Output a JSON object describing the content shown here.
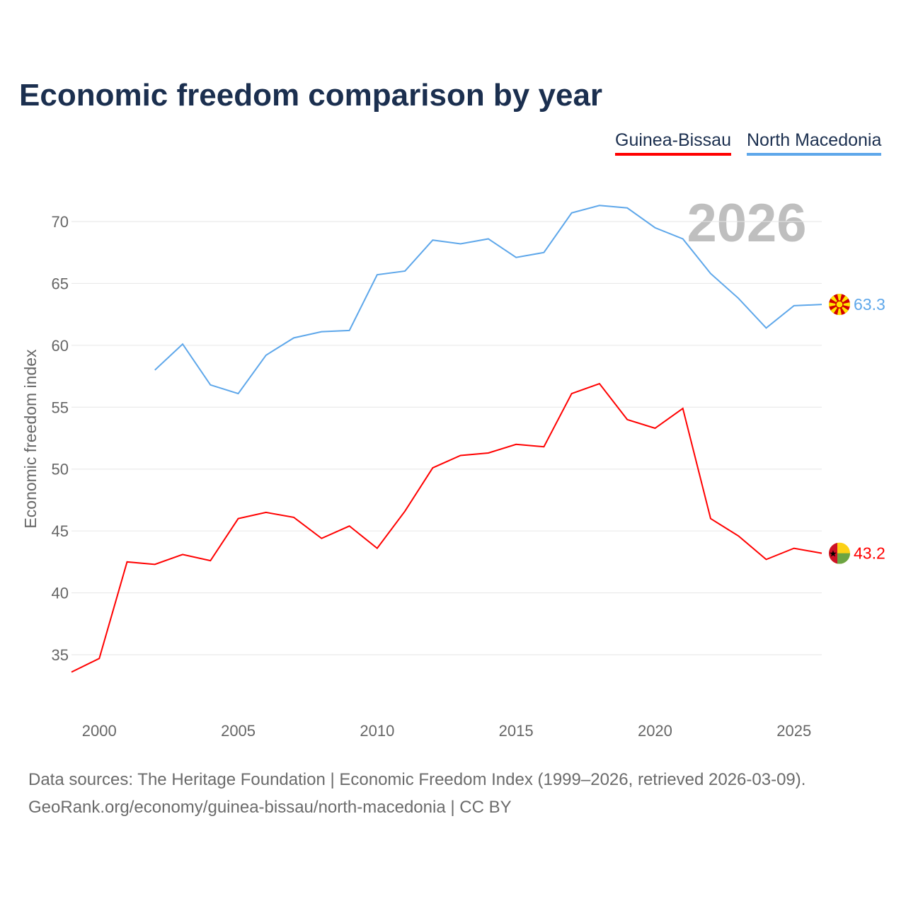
{
  "chart_data": {
    "type": "line",
    "title": "Economic freedom comparison by year",
    "ylabel": "Economic freedom index",
    "xlabel": "",
    "watermark_year": "2026",
    "xlim": [
      1999,
      2026
    ],
    "ylim": [
      32.5,
      73
    ],
    "yticks": [
      35,
      40,
      45,
      50,
      55,
      60,
      65,
      70
    ],
    "xticks": [
      2000,
      2005,
      2010,
      2015,
      2020,
      2025
    ],
    "grid": true,
    "legend_placement": "top-right",
    "series": [
      {
        "name": "Guinea-Bissau",
        "color": "#ff0000",
        "end_label": "43.2",
        "x": [
          1999,
          2000,
          2001,
          2002,
          2003,
          2004,
          2005,
          2006,
          2007,
          2008,
          2009,
          2010,
          2011,
          2012,
          2013,
          2014,
          2015,
          2016,
          2017,
          2018,
          2019,
          2020,
          2021,
          2022,
          2023,
          2024,
          2025,
          2026
        ],
        "values": [
          33.6,
          34.7,
          42.5,
          42.3,
          43.1,
          42.6,
          46.0,
          46.5,
          46.1,
          44.4,
          45.4,
          43.6,
          46.6,
          50.1,
          51.1,
          51.3,
          52.0,
          51.8,
          56.1,
          56.9,
          54.0,
          53.3,
          54.9,
          46.0,
          44.6,
          42.7,
          43.6,
          43.2
        ]
      },
      {
        "name": "North Macedonia",
        "color": "#5ea7ea",
        "end_label": "63.3",
        "x": [
          2002,
          2003,
          2004,
          2005,
          2006,
          2007,
          2008,
          2009,
          2010,
          2011,
          2012,
          2013,
          2014,
          2015,
          2016,
          2017,
          2018,
          2019,
          2020,
          2021,
          2022,
          2023,
          2024,
          2025,
          2026
        ],
        "values": [
          58.0,
          60.1,
          56.8,
          56.1,
          59.2,
          60.6,
          61.1,
          61.2,
          65.7,
          66.0,
          68.5,
          68.2,
          68.6,
          67.1,
          67.5,
          70.7,
          71.3,
          71.1,
          69.5,
          68.6,
          65.8,
          63.8,
          61.4,
          63.2,
          63.3
        ]
      }
    ]
  },
  "footer": {
    "line1": "Data sources: The Heritage Foundation | Economic Freedom Index (1999–2026, retrieved 2026-03-09).",
    "line2": "GeoRank.org/economy/guinea-bissau/north-macedonia | CC BY"
  }
}
